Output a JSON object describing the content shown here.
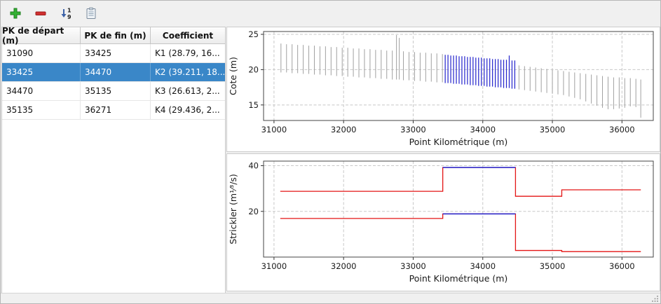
{
  "colors": {
    "selection_bg": "#3a87c8",
    "selection_fg": "#ffffff",
    "window_bg": "#f0f0f0"
  },
  "toolbar": {
    "buttons": [
      {
        "id": "add-row",
        "icon": "plus-icon"
      },
      {
        "id": "remove-row",
        "icon": "minus-icon"
      },
      {
        "id": "sort-rows",
        "icon": "sort-numeric-icon"
      },
      {
        "id": "paste",
        "icon": "paste-icon"
      }
    ]
  },
  "table": {
    "headers": [
      "PK de départ (m)",
      "PK de fin (m)",
      "Coefficient"
    ],
    "selected_index": 1,
    "rows": [
      {
        "pk_start": "31090",
        "pk_end": "33425",
        "coefficient": "K1 (28.79, 16..."
      },
      {
        "pk_start": "33425",
        "pk_end": "34470",
        "coefficient": "K2 (39.211, 18..."
      },
      {
        "pk_start": "34470",
        "pk_end": "35135",
        "coefficient": "K3 (26.613, 2..."
      },
      {
        "pk_start": "35135",
        "pk_end": "36271",
        "coefficient": "K4 (29.436, 2..."
      }
    ]
  },
  "chart_data": [
    {
      "type": "vlines",
      "name": "cote-chart",
      "title": "",
      "xlabel": "Point Kilométrique (m)",
      "ylabel": "Cote (m)",
      "xlim": [
        30850,
        36450
      ],
      "ylim": [
        12.8,
        25.4
      ],
      "xticks": [
        31000,
        32000,
        33000,
        34000,
        35000,
        36000
      ],
      "yticks": [
        15,
        20,
        25
      ],
      "grid": true,
      "selected_range": [
        33425,
        34470
      ],
      "colors": {
        "normal": "#a0a0a0",
        "selected": "#2222cc"
      },
      "lines": [
        [
          31100,
          19.6,
          23.7
        ],
        [
          31180,
          19.6,
          23.6
        ],
        [
          31260,
          19.5,
          23.6
        ],
        [
          31340,
          19.5,
          23.5
        ],
        [
          31420,
          19.4,
          23.5
        ],
        [
          31500,
          19.4,
          23.4
        ],
        [
          31580,
          19.3,
          23.4
        ],
        [
          31660,
          19.3,
          23.3
        ],
        [
          31740,
          19.2,
          23.3
        ],
        [
          31820,
          19.2,
          23.2
        ],
        [
          31900,
          19.1,
          23.2
        ],
        [
          31980,
          19.1,
          23.1
        ],
        [
          32060,
          19.0,
          23.1
        ],
        [
          32140,
          19.0,
          23.0
        ],
        [
          32220,
          18.9,
          23.0
        ],
        [
          32300,
          18.9,
          22.9
        ],
        [
          32380,
          18.8,
          22.9
        ],
        [
          32460,
          18.8,
          22.8
        ],
        [
          32540,
          18.7,
          22.8
        ],
        [
          32620,
          18.7,
          22.7
        ],
        [
          32700,
          18.6,
          22.7
        ],
        [
          32760,
          18.6,
          24.9
        ],
        [
          32800,
          18.6,
          24.5
        ],
        [
          32860,
          18.5,
          22.6
        ],
        [
          32940,
          18.5,
          22.5
        ],
        [
          33020,
          18.4,
          22.5
        ],
        [
          33100,
          18.4,
          22.4
        ],
        [
          33180,
          18.3,
          22.4
        ],
        [
          33260,
          18.3,
          22.3
        ],
        [
          33340,
          18.2,
          22.3
        ],
        [
          33420,
          18.2,
          22.2
        ],
        [
          33460,
          18.1,
          22.1
        ],
        [
          33500,
          18.1,
          22.1
        ],
        [
          33540,
          18.1,
          22.0
        ],
        [
          33580,
          18.0,
          22.0
        ],
        [
          33620,
          18.0,
          22.0
        ],
        [
          33660,
          18.0,
          21.9
        ],
        [
          33700,
          17.9,
          21.9
        ],
        [
          33740,
          17.9,
          21.9
        ],
        [
          33780,
          17.9,
          21.8
        ],
        [
          33820,
          17.8,
          21.8
        ],
        [
          33860,
          17.8,
          21.8
        ],
        [
          33900,
          17.8,
          21.7
        ],
        [
          33940,
          17.7,
          21.7
        ],
        [
          33980,
          17.7,
          21.7
        ],
        [
          34020,
          17.7,
          21.6
        ],
        [
          34060,
          17.6,
          21.6
        ],
        [
          34100,
          17.6,
          21.6
        ],
        [
          34140,
          17.6,
          21.5
        ],
        [
          34180,
          17.5,
          21.5
        ],
        [
          34220,
          17.5,
          21.5
        ],
        [
          34260,
          17.5,
          21.4
        ],
        [
          34300,
          17.4,
          21.4
        ],
        [
          34340,
          17.4,
          21.4
        ],
        [
          34380,
          17.4,
          22.0
        ],
        [
          34420,
          17.3,
          21.3
        ],
        [
          34460,
          17.3,
          21.3
        ],
        [
          34520,
          17.2,
          20.6
        ],
        [
          34600,
          17.1,
          20.5
        ],
        [
          34680,
          17.0,
          20.4
        ],
        [
          34760,
          16.9,
          20.3
        ],
        [
          34840,
          16.8,
          20.2
        ],
        [
          34920,
          16.7,
          20.1
        ],
        [
          35000,
          16.6,
          20.0
        ],
        [
          35080,
          16.5,
          19.9
        ],
        [
          35160,
          16.4,
          19.8
        ],
        [
          35240,
          16.2,
          19.7
        ],
        [
          35320,
          16.0,
          19.6
        ],
        [
          35400,
          15.8,
          19.5
        ],
        [
          35480,
          15.5,
          19.4
        ],
        [
          35560,
          15.2,
          19.3
        ],
        [
          35640,
          14.9,
          19.2
        ],
        [
          35720,
          14.6,
          19.1
        ],
        [
          35800,
          14.4,
          19.0
        ],
        [
          35880,
          14.4,
          18.9
        ],
        [
          35960,
          14.5,
          18.9
        ],
        [
          36040,
          14.6,
          18.8
        ],
        [
          36120,
          14.8,
          18.8
        ],
        [
          36200,
          14.7,
          18.7
        ],
        [
          36270,
          13.2,
          18.6
        ]
      ]
    },
    {
      "type": "step",
      "name": "strickler-chart",
      "title": "",
      "xlabel": "Point Kilométrique (m)",
      "ylabel": "Strickler (m¹⁄³/s)",
      "xlim": [
        30850,
        36450
      ],
      "ylim": [
        0,
        42
      ],
      "xticks": [
        31000,
        32000,
        33000,
        34000,
        35000,
        36000
      ],
      "yticks": [
        20,
        40
      ],
      "grid": true,
      "selected_range": [
        33425,
        34470
      ],
      "colors": {
        "normal": "#e41515",
        "selected": "#2222cc"
      },
      "series": [
        {
          "name": "strickler-principal",
          "segments": [
            {
              "x0": 31090,
              "x1": 33425,
              "y": 28.79
            },
            {
              "x0": 33425,
              "x1": 34470,
              "y": 39.211
            },
            {
              "x0": 34470,
              "x1": 35135,
              "y": 26.613
            },
            {
              "x0": 35135,
              "x1": 36271,
              "y": 29.436
            }
          ]
        },
        {
          "name": "strickler-secondaire",
          "segments": [
            {
              "x0": 31090,
              "x1": 33425,
              "y": 16.9
            },
            {
              "x0": 33425,
              "x1": 34470,
              "y": 18.9
            },
            {
              "x0": 34470,
              "x1": 35135,
              "y": 2.9
            },
            {
              "x0": 35135,
              "x1": 36271,
              "y": 2.4
            }
          ]
        }
      ]
    }
  ]
}
